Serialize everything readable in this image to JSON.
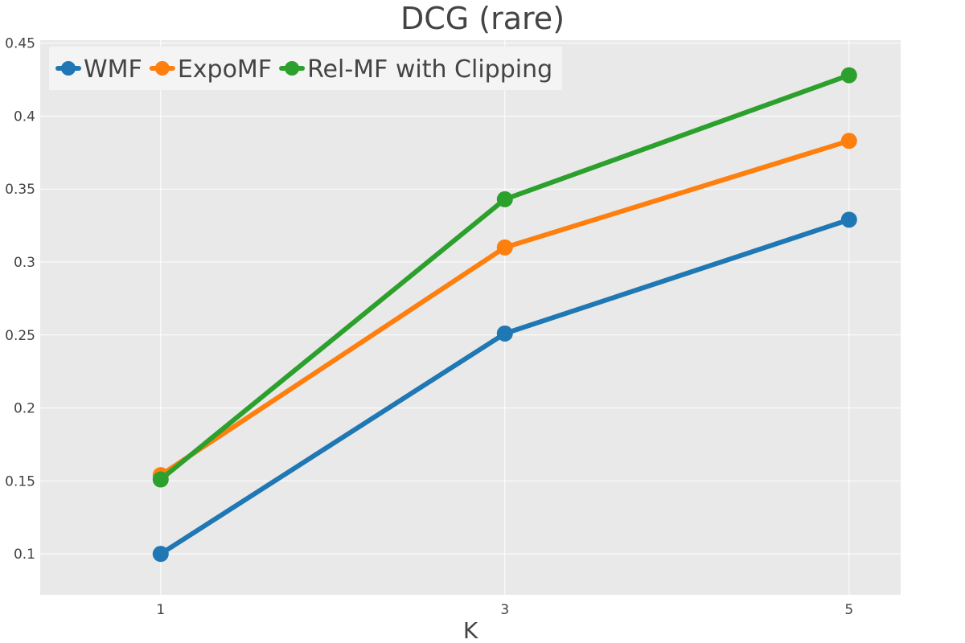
{
  "chart_data": {
    "type": "line",
    "title": "DCG (rare)",
    "xlabel": "K",
    "ylabel": "",
    "x": [
      1,
      3,
      5
    ],
    "xticks": [
      "1",
      "3",
      "5"
    ],
    "yticks": [
      "0.1",
      "0.15",
      "0.2",
      "0.25",
      "0.3",
      "0.35",
      "0.4",
      "0.45"
    ],
    "ytick_values": [
      0.1,
      0.15,
      0.2,
      0.25,
      0.3,
      0.35,
      0.4,
      0.45
    ],
    "xlim": [
      0.3,
      5.3
    ],
    "ylim": [
      0.072,
      0.452
    ],
    "grid": true,
    "legend_position": "top-left",
    "background_color": "#e9e9e9",
    "grid_color": "#ffffff",
    "series": [
      {
        "name": "WMF",
        "color": "#1f77b4",
        "values": [
          0.1,
          0.251,
          0.329
        ]
      },
      {
        "name": "ExpoMF",
        "color": "#ff7f0e",
        "values": [
          0.154,
          0.31,
          0.383
        ]
      },
      {
        "name": "Rel-MF with Clipping",
        "color": "#2ca02c",
        "values": [
          0.151,
          0.343,
          0.428
        ]
      }
    ]
  }
}
